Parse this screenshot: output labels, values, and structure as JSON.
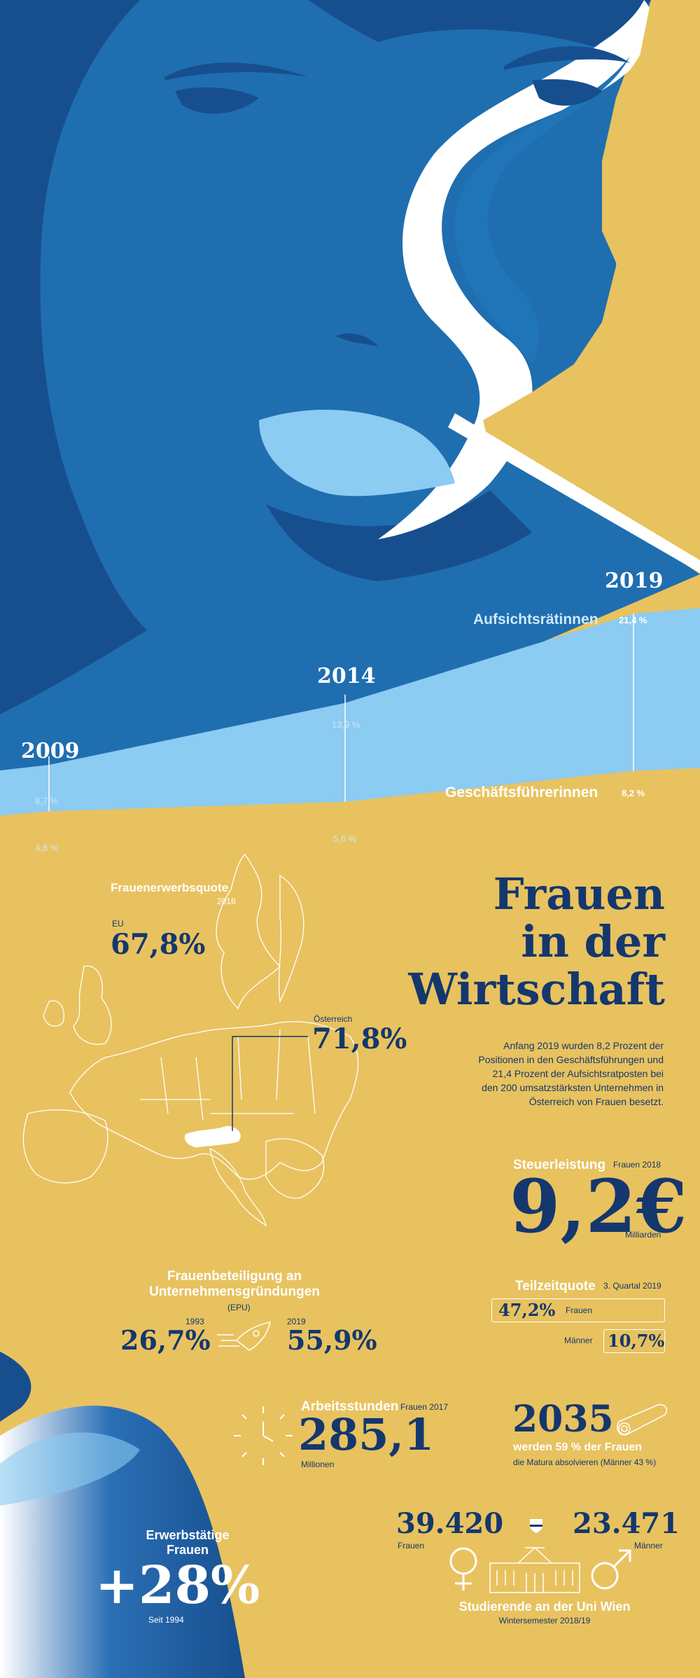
{
  "colors": {
    "background": "#e8c25f",
    "dark_blue": "#1a4f8f",
    "mid_blue": "#1f75b8",
    "light_blue": "#8ccbf2",
    "navy_text": "#14376e"
  },
  "title": {
    "line1": "Frauen",
    "line2": "in der",
    "line3": "Wirtschaft"
  },
  "intro": {
    "lines": [
      "Anfang 2019 wurden 8,2 Prozent der",
      "Positionen in den Geschäftsführungen und",
      "21,4 Prozent der Aufsichtsratposten bei",
      "den 200 umsatzstärksten Unternehmen in",
      "Österreich von Frauen besetzt."
    ]
  },
  "chart_data": {
    "type": "area",
    "x": [
      "2009",
      "2014",
      "2019"
    ],
    "series": [
      {
        "name": "Aufsichtsrätinnen",
        "values": [
          8.7,
          13.9,
          21.4
        ]
      },
      {
        "name": "Geschäftsführerinnen",
        "values": [
          4.8,
          5.6,
          8.2
        ]
      }
    ],
    "value_labels": {
      "aufsicht": [
        "8,7 %",
        "13,9 %",
        "21,4 %"
      ],
      "gf": [
        "4,8 %",
        "5,6 %",
        "8,2 %"
      ]
    },
    "unit": "%"
  },
  "erwerbsquote": {
    "label": "Frauenerwerbsquote",
    "year": "2018",
    "eu_label": "EU",
    "eu_value": "67,8%",
    "at_label": "Österreich",
    "at_value": "71,8%"
  },
  "steuer": {
    "label": "Steuerleistung",
    "sub": "Frauen 2018",
    "value": "9,2€",
    "unit": "Milliarden"
  },
  "gruendungen": {
    "label_line1": "Frauenbeteiligung an",
    "label_line2": "Unternehmensgründungen",
    "sub": "(EPU)",
    "year1": "1993",
    "value1": "26,7%",
    "year2": "2019",
    "value2": "55,9%"
  },
  "teilzeit": {
    "label": "Teilzeitquote",
    "sub": "3. Quartal 2019",
    "women_value": "47,2%",
    "women_label": "Frauen",
    "men_label": "Männer",
    "men_value": "10,7%"
  },
  "arbeit": {
    "label": "Arbeitsstunden",
    "sub": "Frauen 2017",
    "value": "285,1",
    "unit": "Millionen"
  },
  "matura": {
    "year": "2035",
    "line1": "werden 59 % der Frauen",
    "line2": "die Matura absolvieren (Männer 43 %)"
  },
  "erwerb": {
    "label_line1": "Erwerbstätige",
    "label_line2": "Frauen",
    "value": "+28%",
    "sub": "Seit 1994"
  },
  "uni": {
    "women_value": "39.420",
    "women_label": "Frauen",
    "men_value": "23.471",
    "men_label": "Männer",
    "label": "Studierende an der Uni Wien",
    "sub": "Wintersemester 2018/19"
  }
}
